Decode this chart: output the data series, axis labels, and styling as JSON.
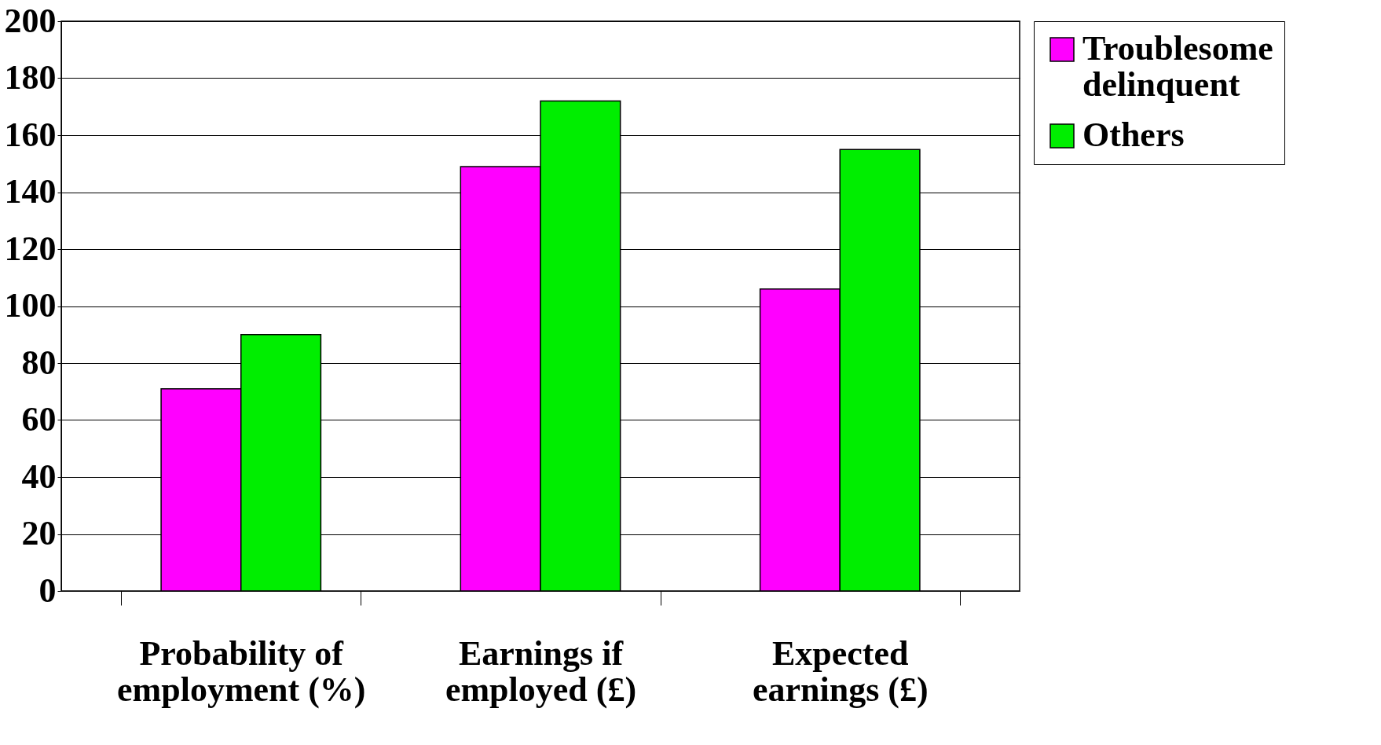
{
  "chart_data": {
    "type": "bar",
    "categories": [
      "Probability of employment (%)",
      "Earnings if employed (£)",
      "Expected earnings (£)"
    ],
    "series": [
      {
        "name": "Troublesome delinquent",
        "color": "#ff00ff",
        "values": [
          71,
          149,
          106
        ]
      },
      {
        "name": "Others",
        "color": "#00ee00",
        "values": [
          90,
          172,
          155
        ]
      }
    ],
    "ylim": [
      0,
      200
    ],
    "yticks": [
      0,
      20,
      40,
      60,
      80,
      100,
      120,
      140,
      160,
      180,
      200
    ],
    "grid": "y",
    "legend": "right"
  }
}
